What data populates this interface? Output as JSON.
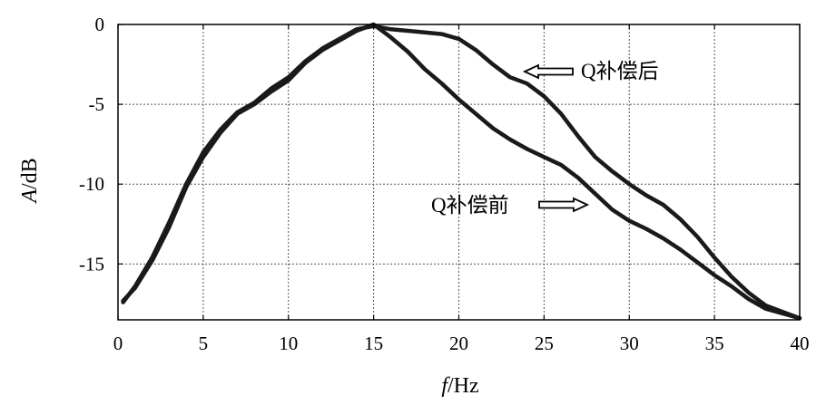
{
  "chart_data": {
    "type": "line",
    "title": "",
    "xlabel": "f/Hz",
    "xlabel_italic": "f",
    "xlabel_rest": "/Hz",
    "ylabel": "A/dB",
    "ylabel_italic": "A",
    "ylabel_rest": "/dB",
    "xlim": [
      0,
      40
    ],
    "ylim": [
      -18.5,
      0
    ],
    "xticks": [
      0,
      5,
      10,
      15,
      20,
      25,
      30,
      35,
      40
    ],
    "yticks": [
      0,
      -5,
      -10,
      -15
    ],
    "xtick_labels": [
      "0",
      "5",
      "10",
      "15",
      "20",
      "25",
      "30",
      "35",
      "40"
    ],
    "ytick_labels": [
      "0",
      "-5",
      "-10",
      "-15"
    ],
    "grid": true,
    "line_color": "#1a1a1a",
    "series": [
      {
        "name": "Q补偿前",
        "x": [
          0.3,
          1,
          2,
          3,
          4,
          5,
          6,
          7,
          8,
          9,
          10,
          11,
          12,
          13,
          14,
          15,
          16,
          17,
          18,
          19,
          20,
          21,
          22,
          23,
          24,
          25,
          26,
          27,
          28,
          29,
          30,
          31,
          32,
          33,
          34,
          35,
          36,
          37,
          38,
          39,
          40
        ],
        "y": [
          -17.3,
          -16.5,
          -14.8,
          -12.7,
          -10.2,
          -8.3,
          -6.8,
          -5.6,
          -5.0,
          -4.2,
          -3.5,
          -2.4,
          -1.6,
          -1.0,
          -0.4,
          0.0,
          -0.8,
          -1.7,
          -2.8,
          -3.7,
          -4.7,
          -5.6,
          -6.5,
          -7.2,
          -7.8,
          -8.3,
          -8.8,
          -9.6,
          -10.6,
          -11.6,
          -12.3,
          -12.8,
          -13.4,
          -14.1,
          -14.9,
          -15.7,
          -16.4,
          -17.2,
          -17.8,
          -18.1,
          -18.4
        ]
      },
      {
        "name": "Q补偿后",
        "x": [
          0.3,
          1,
          2,
          3,
          4,
          5,
          6,
          7,
          8,
          9,
          10,
          11,
          12,
          13,
          14,
          15,
          16,
          17,
          18,
          19,
          20,
          21,
          22,
          23,
          24,
          25,
          26,
          27,
          28,
          29,
          30,
          31,
          32,
          33,
          34,
          35,
          36,
          37,
          38,
          39,
          40
        ],
        "y": [
          -17.4,
          -16.4,
          -14.6,
          -12.4,
          -10.0,
          -8.0,
          -6.6,
          -5.5,
          -4.9,
          -4.0,
          -3.3,
          -2.3,
          -1.5,
          -0.9,
          -0.3,
          -0.1,
          -0.3,
          -0.4,
          -0.5,
          -0.6,
          -0.9,
          -1.6,
          -2.5,
          -3.3,
          -3.7,
          -4.5,
          -5.6,
          -7.0,
          -8.3,
          -9.2,
          -10.0,
          -10.7,
          -11.3,
          -12.2,
          -13.3,
          -14.6,
          -15.8,
          -16.8,
          -17.6,
          -18.0,
          -18.4
        ]
      }
    ],
    "annotations": [
      {
        "text": "Q补偿后",
        "arrow": "left",
        "points_to": "Q补偿后"
      },
      {
        "text": "Q补偿前",
        "arrow": "right",
        "points_to": "Q补偿前"
      }
    ]
  }
}
